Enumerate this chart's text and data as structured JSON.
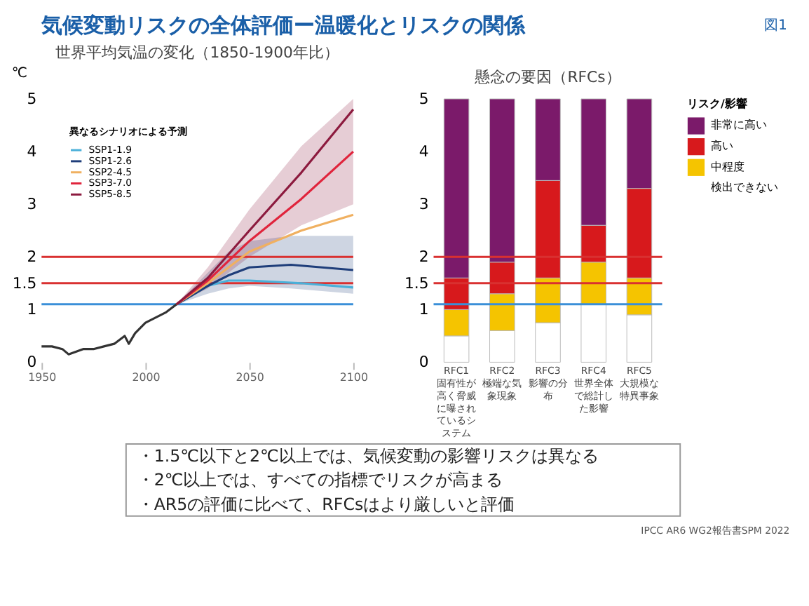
{
  "chart_data": [
    {
      "type": "line",
      "title": "気候変動リスクの全体評価ー温暖化とリスクの関係",
      "subtitle": "世界平均気温の変化（1850-1900年比）",
      "ylabel": "℃",
      "legend_title": "異なるシナリオによる予測",
      "xlim": [
        1950,
        2100
      ],
      "xticks": [
        1950,
        2000,
        2050,
        2100
      ],
      "ylim": [
        0,
        5
      ],
      "yticks": [
        0,
        1,
        1.5,
        2,
        3,
        4,
        5
      ],
      "grid": false,
      "legend": "top left",
      "marker": "none",
      "line_style": "solid",
      "series": [
        {
          "color": "#333333",
          "x": [
            1950,
            1955,
            1960,
            1963,
            1970,
            1975,
            1980,
            1985,
            1990,
            1992,
            1995,
            2000,
            2005,
            2010,
            2015
          ],
          "values": [
            0.3,
            0.3,
            0.25,
            0.15,
            0.25,
            0.25,
            0.3,
            0.35,
            0.5,
            0.35,
            0.55,
            0.75,
            0.85,
            0.95,
            1.1
          ]
        },
        {
          "name": "SSP1-1.9",
          "color": "#4ab0d9",
          "x": [
            2015,
            2030,
            2040,
            2050,
            2075,
            2100
          ],
          "values": [
            1.1,
            1.45,
            1.55,
            1.55,
            1.5,
            1.42
          ]
        },
        {
          "name": "SSP1-2.6",
          "color": "#1f3e7a",
          "x": [
            2015,
            2030,
            2040,
            2050,
            2070,
            2100
          ],
          "values": [
            1.1,
            1.45,
            1.65,
            1.8,
            1.85,
            1.75
          ],
          "lower": [
            1.1,
            1.3,
            1.4,
            1.45,
            1.4,
            1.3
          ],
          "upper": [
            1.1,
            1.7,
            2.1,
            2.3,
            2.4,
            2.4
          ]
        },
        {
          "name": "SSP2-4.5",
          "color": "#f0b060",
          "x": [
            2015,
            2030,
            2050,
            2075,
            2100
          ],
          "values": [
            1.1,
            1.5,
            2.1,
            2.5,
            2.8
          ]
        },
        {
          "name": "SSP3-7.0",
          "color": "#e0243c",
          "x": [
            2015,
            2030,
            2050,
            2075,
            2100
          ],
          "values": [
            1.1,
            1.55,
            2.3,
            3.1,
            4.0
          ]
        },
        {
          "name": "SSP5-8.5",
          "color": "#8c1a3e",
          "x": [
            2015,
            2030,
            2050,
            2075,
            2100
          ],
          "values": [
            1.1,
            1.6,
            2.5,
            3.6,
            4.8
          ],
          "lower": [
            1.1,
            1.4,
            2.0,
            2.6,
            3.0
          ],
          "upper": [
            1.1,
            1.8,
            2.9,
            4.1,
            5.0
          ]
        }
      ],
      "ref_lines": [
        {
          "axis": "y",
          "value": 1.1,
          "color": "#3a8fd8"
        },
        {
          "axis": "y",
          "value": 1.5,
          "color": "#d93030"
        },
        {
          "axis": "y",
          "value": 2,
          "color": "#d93030"
        }
      ],
      "annotations": [
        "図1",
        "・1.5℃以下と2℃以上では、気候変動の影響リスクは異なる",
        "・2℃以上では、すべての指標でリスクが高まる",
        "・AR5の評価に比べて、RFCsはより厳しいと評価",
        "IPCC AR6 WG2報告書SPM 2022"
      ]
    },
    {
      "type": "bar",
      "stacked": true,
      "title": "懸念の要因（RFCs）",
      "legend_title": "リスク/影響",
      "legend": "right",
      "grid": false,
      "categories": [
        "RFC1 固有性が高く脅威に曝されているシステム",
        "RFC2 極端な気象現象",
        "RFC3 影響の分布",
        "RFC4 世界全体で総計した影響",
        "RFC5 大規模な特異事象"
      ],
      "ylim": [
        0,
        5
      ],
      "yticks": [
        0,
        1,
        1.5,
        2,
        3,
        4,
        5
      ],
      "series": [
        {
          "name": "検出できない",
          "color": "#ffffff",
          "values": [
            0.5,
            0.6,
            0.75,
            1.1,
            0.9
          ]
        },
        {
          "name": "中程度",
          "color": "#f5c400",
          "values": [
            0.5,
            0.7,
            0.85,
            0.8,
            0.7
          ]
        },
        {
          "name": "高い",
          "color": "#d7191c",
          "values": [
            0.6,
            0.6,
            1.85,
            0.7,
            1.7
          ]
        },
        {
          "name": "非常に高い",
          "color": "#7b1a6a",
          "values": [
            3.4,
            3.1,
            1.55,
            2.4,
            1.7
          ]
        }
      ],
      "ref_lines": [
        {
          "axis": "y",
          "value": 1.1,
          "color": "#3a8fd8"
        },
        {
          "axis": "y",
          "value": 1.5,
          "color": "#d93030"
        },
        {
          "axis": "y",
          "value": 2,
          "color": "#d93030"
        }
      ]
    }
  ]
}
